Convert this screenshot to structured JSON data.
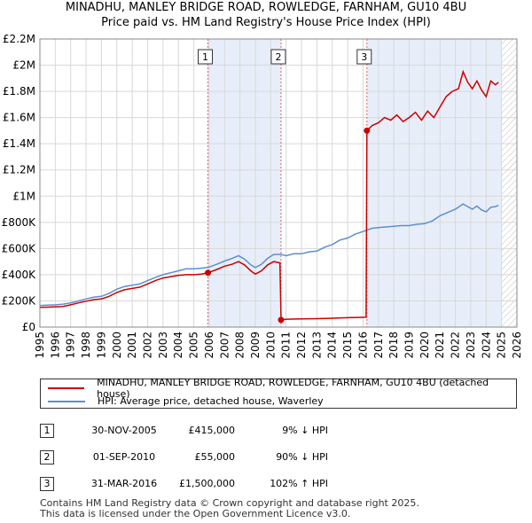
{
  "title_line1": "MINADHU, MANLEY BRIDGE ROAD, ROWLEDGE, FARNHAM, GU10 4BU",
  "title_line2": "Price paid vs. HM Land Registry's House Price Index (HPI)",
  "colors": {
    "property_line": "#cc0000",
    "hpi_line": "#5b8fd0",
    "shade": "#e8eef9",
    "grid": "#d8d8d8",
    "vline": "#e06060"
  },
  "legend": {
    "property_label": "MINADHU, MANLEY BRIDGE ROAD, ROWLEDGE, FARNHAM, GU10 4BU (detached house)",
    "hpi_label": "HPI: Average price, detached house, Waverley"
  },
  "transactions": [
    {
      "num": "1",
      "date": "30-NOV-2005",
      "price": "£415,000",
      "hpi": "9% ↓ HPI"
    },
    {
      "num": "2",
      "date": "01-SEP-2010",
      "price": "£55,000",
      "hpi": "90% ↓ HPI"
    },
    {
      "num": "3",
      "date": "31-MAR-2016",
      "price": "£1,500,000",
      "hpi": "102% ↑ HPI"
    }
  ],
  "footer_line1": "Contains HM Land Registry data © Crown copyright and database right 2025.",
  "footer_line2": "This data is licensed under the Open Government Licence v3.0.",
  "chart_data": {
    "type": "line",
    "title": "Price paid vs. HM Land Registry's House Price Index (HPI)",
    "xlim": [
      1995,
      2026
    ],
    "ylim": [
      0,
      2200000
    ],
    "x_ticks": [
      1995,
      1996,
      1997,
      1998,
      1999,
      2000,
      2001,
      2002,
      2003,
      2004,
      2005,
      2006,
      2007,
      2008,
      2009,
      2010,
      2011,
      2012,
      2013,
      2014,
      2015,
      2016,
      2017,
      2018,
      2019,
      2020,
      2021,
      2022,
      2023,
      2024,
      2025,
      2026
    ],
    "y_ticks": [
      {
        "value": 0,
        "label": "£0"
      },
      {
        "value": 200000,
        "label": "£200K"
      },
      {
        "value": 400000,
        "label": "£400K"
      },
      {
        "value": 600000,
        "label": "£600K"
      },
      {
        "value": 800000,
        "label": "£800K"
      },
      {
        "value": 1000000,
        "label": "£1M"
      },
      {
        "value": 1200000,
        "label": "£1.2M"
      },
      {
        "value": 1400000,
        "label": "£1.4M"
      },
      {
        "value": 1600000,
        "label": "£1.6M"
      },
      {
        "value": 1800000,
        "label": "£1.8M"
      },
      {
        "value": 2000000,
        "label": "£2M"
      },
      {
        "value": 2200000,
        "label": "£2.2M"
      }
    ],
    "grid": true,
    "shaded_ranges": [
      [
        2005.92,
        2010.67
      ],
      [
        2016.25,
        2025.0
      ]
    ],
    "future_hatch_from": 2025.0,
    "sale_markers": [
      {
        "label": "1",
        "x": 2005.92,
        "y": 415000
      },
      {
        "label": "2",
        "x": 2010.67,
        "y": 55000
      },
      {
        "label": "3",
        "x": 2016.25,
        "y": 1500000
      }
    ],
    "series": [
      {
        "name": "MINADHU, MANLEY BRIDGE ROAD, ROWLEDGE, FARNHAM, GU10 4BU (detached house)",
        "color": "#cc0000",
        "points": [
          [
            1995.0,
            150000
          ],
          [
            1995.5,
            152000
          ],
          [
            1996.0,
            155000
          ],
          [
            1996.5,
            158000
          ],
          [
            1997.0,
            170000
          ],
          [
            1997.5,
            185000
          ],
          [
            1998.0,
            198000
          ],
          [
            1998.5,
            210000
          ],
          [
            1999.0,
            215000
          ],
          [
            1999.5,
            235000
          ],
          [
            2000.0,
            265000
          ],
          [
            2000.5,
            285000
          ],
          [
            2001.0,
            295000
          ],
          [
            2001.5,
            305000
          ],
          [
            2002.0,
            330000
          ],
          [
            2002.5,
            355000
          ],
          [
            2003.0,
            375000
          ],
          [
            2003.5,
            385000
          ],
          [
            2004.0,
            395000
          ],
          [
            2004.5,
            400000
          ],
          [
            2005.0,
            400000
          ],
          [
            2005.5,
            405000
          ],
          [
            2005.92,
            415000
          ],
          [
            2006.5,
            440000
          ],
          [
            2007.0,
            465000
          ],
          [
            2007.5,
            480000
          ],
          [
            2007.9,
            500000
          ],
          [
            2008.3,
            475000
          ],
          [
            2008.7,
            430000
          ],
          [
            2009.0,
            405000
          ],
          [
            2009.4,
            430000
          ],
          [
            2009.8,
            475000
          ],
          [
            2010.2,
            500000
          ],
          [
            2010.6,
            490000
          ],
          [
            2010.67,
            55000
          ],
          [
            2011.0,
            60000
          ],
          [
            2012.0,
            62000
          ],
          [
            2013.0,
            64000
          ],
          [
            2014.0,
            68000
          ],
          [
            2015.0,
            72000
          ],
          [
            2016.2,
            75000
          ],
          [
            2016.25,
            1500000
          ],
          [
            2016.6,
            1540000
          ],
          [
            2017.0,
            1560000
          ],
          [
            2017.4,
            1600000
          ],
          [
            2017.8,
            1580000
          ],
          [
            2018.2,
            1620000
          ],
          [
            2018.6,
            1570000
          ],
          [
            2019.0,
            1600000
          ],
          [
            2019.4,
            1640000
          ],
          [
            2019.8,
            1580000
          ],
          [
            2020.2,
            1650000
          ],
          [
            2020.6,
            1600000
          ],
          [
            2021.0,
            1680000
          ],
          [
            2021.4,
            1760000
          ],
          [
            2021.8,
            1800000
          ],
          [
            2022.2,
            1820000
          ],
          [
            2022.5,
            1950000
          ],
          [
            2022.8,
            1870000
          ],
          [
            2023.1,
            1820000
          ],
          [
            2023.4,
            1880000
          ],
          [
            2023.7,
            1810000
          ],
          [
            2024.0,
            1760000
          ],
          [
            2024.3,
            1880000
          ],
          [
            2024.6,
            1850000
          ],
          [
            2024.8,
            1870000
          ]
        ]
      },
      {
        "name": "HPI: Average price, detached house, Waverley",
        "color": "#5b8fd0",
        "points": [
          [
            1995.0,
            165000
          ],
          [
            1995.5,
            167000
          ],
          [
            1996.0,
            170000
          ],
          [
            1996.5,
            175000
          ],
          [
            1997.0,
            185000
          ],
          [
            1997.5,
            200000
          ],
          [
            1998.0,
            215000
          ],
          [
            1998.5,
            228000
          ],
          [
            1999.0,
            235000
          ],
          [
            1999.5,
            258000
          ],
          [
            2000.0,
            290000
          ],
          [
            2000.5,
            310000
          ],
          [
            2001.0,
            320000
          ],
          [
            2001.5,
            330000
          ],
          [
            2002.0,
            355000
          ],
          [
            2002.5,
            380000
          ],
          [
            2003.0,
            400000
          ],
          [
            2003.5,
            415000
          ],
          [
            2004.0,
            430000
          ],
          [
            2004.5,
            445000
          ],
          [
            2005.0,
            445000
          ],
          [
            2005.5,
            450000
          ],
          [
            2005.92,
            455000
          ],
          [
            2006.5,
            480000
          ],
          [
            2007.0,
            505000
          ],
          [
            2007.5,
            525000
          ],
          [
            2007.9,
            545000
          ],
          [
            2008.3,
            520000
          ],
          [
            2008.7,
            475000
          ],
          [
            2009.0,
            455000
          ],
          [
            2009.4,
            480000
          ],
          [
            2009.8,
            525000
          ],
          [
            2010.2,
            555000
          ],
          [
            2010.67,
            555000
          ],
          [
            2011.0,
            545000
          ],
          [
            2011.5,
            560000
          ],
          [
            2012.0,
            560000
          ],
          [
            2012.5,
            575000
          ],
          [
            2013.0,
            580000
          ],
          [
            2013.5,
            610000
          ],
          [
            2014.0,
            630000
          ],
          [
            2014.5,
            665000
          ],
          [
            2015.0,
            680000
          ],
          [
            2015.5,
            710000
          ],
          [
            2016.0,
            730000
          ],
          [
            2016.25,
            742000
          ],
          [
            2016.6,
            755000
          ],
          [
            2017.0,
            760000
          ],
          [
            2017.5,
            765000
          ],
          [
            2018.0,
            770000
          ],
          [
            2018.5,
            775000
          ],
          [
            2019.0,
            775000
          ],
          [
            2019.5,
            785000
          ],
          [
            2020.0,
            790000
          ],
          [
            2020.5,
            810000
          ],
          [
            2021.0,
            850000
          ],
          [
            2021.5,
            875000
          ],
          [
            2022.0,
            900000
          ],
          [
            2022.5,
            940000
          ],
          [
            2022.8,
            920000
          ],
          [
            2023.1,
            900000
          ],
          [
            2023.4,
            925000
          ],
          [
            2023.7,
            895000
          ],
          [
            2024.0,
            880000
          ],
          [
            2024.3,
            915000
          ],
          [
            2024.6,
            920000
          ],
          [
            2024.8,
            930000
          ]
        ]
      }
    ]
  }
}
